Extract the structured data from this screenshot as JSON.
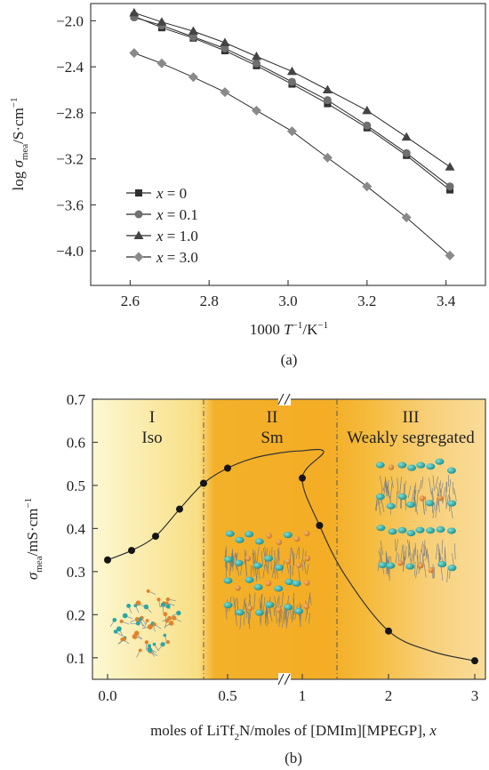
{
  "colors": {
    "line_black": "#2b2b2b",
    "marker_dark": "#303030",
    "marker_mid": "#6f6f6f",
    "marker_light": "#8a8a8a",
    "region1": "#fbf2b8",
    "region2": "#f3a91f",
    "region3": "#f6c764",
    "particle_cyan": "#2aa7a3",
    "particle_orange": "#e0832b"
  },
  "chart_data": [
    {
      "type": "line",
      "panel_label": "(a)",
      "xlabel_pre": "1000 ",
      "xlabel_T": "T",
      "xlabel_sup": "−1",
      "xlabel_post": "/K",
      "ylabel_pre": "log ",
      "ylabel_sigma": "σ",
      "ylabel_sub": "mea",
      "ylabel_post": "/S·cm",
      "ylabel_sup": "−1",
      "xlim": [
        2.5,
        3.5
      ],
      "ylim": [
        -4.3,
        -1.85
      ],
      "xticks": [
        2.6,
        2.8,
        3.0,
        3.2,
        3.4
      ],
      "xtick_labels": [
        "2.6",
        "2.8",
        "3.0",
        "3.2",
        "3.4"
      ],
      "yticks": [
        -2.0,
        -2.4,
        -2.8,
        -3.2,
        -3.6,
        -4.0
      ],
      "ytick_labels": [
        "−2.0",
        "−2.4",
        "−2.8",
        "−3.2",
        "−3.6",
        "−4.0"
      ],
      "legend_position": "lower-left",
      "x": [
        2.61,
        2.68,
        2.76,
        2.84,
        2.92,
        3.01,
        3.1,
        3.2,
        3.3,
        3.41
      ],
      "series": [
        {
          "name_var": "x",
          "name_val": " = 0",
          "marker": "square",
          "color": "#303030",
          "values": [
            -1.96,
            -2.06,
            -2.15,
            -2.26,
            -2.39,
            -2.55,
            -2.72,
            -2.93,
            -3.17,
            -3.47
          ]
        },
        {
          "name_var": "x",
          "name_val": " = 0.1",
          "marker": "circle",
          "color": "#6f6f6f",
          "values": [
            -1.97,
            -2.04,
            -2.14,
            -2.24,
            -2.37,
            -2.53,
            -2.69,
            -2.91,
            -3.15,
            -3.44
          ]
        },
        {
          "name_var": "x",
          "name_val": " = 1.0",
          "marker": "triangle",
          "color": "#444444",
          "values": [
            -1.93,
            -2.01,
            -2.09,
            -2.19,
            -2.31,
            -2.44,
            -2.6,
            -2.78,
            -3.01,
            -3.27
          ]
        },
        {
          "name_var": "x",
          "name_val": " = 3.0",
          "marker": "diamond",
          "color": "#8a8a8a",
          "values": [
            -2.28,
            -2.37,
            -2.49,
            -2.62,
            -2.78,
            -2.96,
            -3.19,
            -3.44,
            -3.71,
            -4.04
          ]
        }
      ]
    },
    {
      "type": "scatter",
      "panel_label": "(b)",
      "xlabel_pre": "moles of LiTf",
      "xlabel_sub": "2",
      "xlabel_mid": "N/moles of [DMIm][MPEGP], ",
      "xlabel_var": "x",
      "ylabel_sigma": "σ",
      "ylabel_sub": "mea",
      "ylabel_post": "/mS·cm",
      "ylabel_sup": "−1",
      "ylim": [
        0.05,
        0.7
      ],
      "yticks": [
        0.1,
        0.2,
        0.3,
        0.4,
        0.5,
        0.6,
        0.7
      ],
      "ytick_labels": [
        "0.1",
        "0.2",
        "0.3",
        "0.4",
        "0.5",
        "0.6",
        "0.7"
      ],
      "xticks": [
        0.0,
        0.5,
        1,
        2,
        3
      ],
      "xtick_labels": [
        "0.0",
        "0.5",
        "1",
        "2",
        "3"
      ],
      "axis_break": "broken x axis between 0.9 and 1",
      "regions": [
        {
          "numeral": "I",
          "name": "Iso"
        },
        {
          "numeral": "II",
          "name": "Sm"
        },
        {
          "numeral": "III",
          "name": "Weakly segregated"
        }
      ],
      "points": [
        {
          "x": 0.0,
          "y": 0.327
        },
        {
          "x": 0.1,
          "y": 0.349
        },
        {
          "x": 0.2,
          "y": 0.382
        },
        {
          "x": 0.3,
          "y": 0.445
        },
        {
          "x": 0.4,
          "y": 0.505
        },
        {
          "x": 0.5,
          "y": 0.54
        },
        {
          "x": 1,
          "y": 0.517
        },
        {
          "x": 1.2,
          "y": 0.407
        },
        {
          "x": 2,
          "y": 0.162
        },
        {
          "x": 3,
          "y": 0.093
        }
      ],
      "fit_curve": [
        {
          "x": 0.0,
          "y": 0.327
        },
        {
          "x": 0.1,
          "y": 0.349
        },
        {
          "x": 0.2,
          "y": 0.382
        },
        {
          "x": 0.3,
          "y": 0.445
        },
        {
          "x": 0.4,
          "y": 0.505
        },
        {
          "x": 0.5,
          "y": 0.54
        },
        {
          "x": 0.6,
          "y": 0.562
        },
        {
          "x": 0.7,
          "y": 0.574
        },
        {
          "x": 0.8,
          "y": 0.58
        },
        {
          "x": 0.9,
          "y": 0.578
        },
        {
          "x": 1,
          "y": 0.517
        },
        {
          "x": 1.2,
          "y": 0.407
        },
        {
          "x": 1.5,
          "y": 0.29
        },
        {
          "x": 2,
          "y": 0.162
        },
        {
          "x": 2.5,
          "y": 0.115
        },
        {
          "x": 3,
          "y": 0.093
        }
      ]
    }
  ]
}
